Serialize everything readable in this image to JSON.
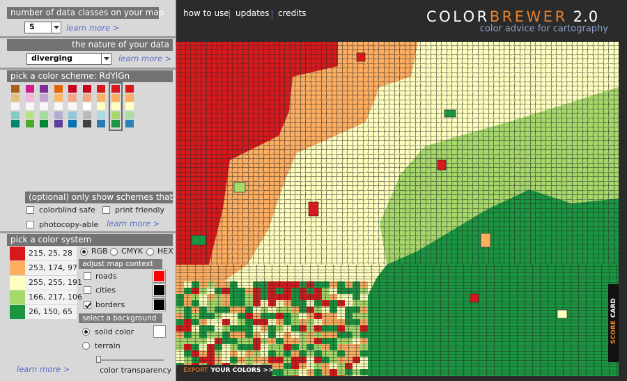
{
  "nav": {
    "links": [
      "how to use",
      "updates",
      "credits"
    ]
  },
  "header": {
    "logo_left": "COLOR",
    "logo_right": "BREWER",
    "version": "2.0",
    "tagline": "color advice for cartography"
  },
  "classes": {
    "title": "number of data classes on your map",
    "value": "5",
    "learn_more": "learn more >"
  },
  "nature": {
    "title": "the nature of your data",
    "value": "diverging",
    "learn_more": "learn more >"
  },
  "scheme": {
    "title": "pick a color scheme: RdYlGn",
    "selected": 7,
    "schemes": [
      [
        "#a6611a",
        "#dfc27d",
        "#f5f5f5",
        "#80cdc1",
        "#018571"
      ],
      [
        "#d01c8b",
        "#f1b6da",
        "#f7f7f7",
        "#b8e186",
        "#4dac26"
      ],
      [
        "#7b3294",
        "#c2a5cf",
        "#f7f7f7",
        "#a6dba0",
        "#008837"
      ],
      [
        "#e66101",
        "#fdb863",
        "#f7f7f7",
        "#b2abd2",
        "#5e3c99"
      ],
      [
        "#ca0020",
        "#f4a582",
        "#f7f7f7",
        "#92c5de",
        "#0571b0"
      ],
      [
        "#ca0020",
        "#f4a582",
        "#ffffff",
        "#bababa",
        "#404040"
      ],
      [
        "#d7191c",
        "#fdae61",
        "#ffffbf",
        "#abd9e9",
        "#2c7bb6"
      ],
      [
        "#d7191c",
        "#fdae61",
        "#ffffbf",
        "#a6d96a",
        "#1a9641"
      ],
      [
        "#d7191c",
        "#fdae61",
        "#ffffbf",
        "#abdda4",
        "#2b83ba"
      ]
    ]
  },
  "filters": {
    "title": "(optional) only show schemes that are:",
    "options": [
      {
        "label": "colorblind safe",
        "checked": false
      },
      {
        "label": "print friendly",
        "checked": false
      },
      {
        "label": "photocopy-able",
        "checked": false
      }
    ],
    "learn_more": "learn more >"
  },
  "color_system": {
    "title": "pick a color system",
    "colors": [
      {
        "label": "215, 25, 28",
        "color": "#d7191c"
      },
      {
        "label": "253, 174, 97",
        "color": "#fdae61"
      },
      {
        "label": "255, 255, 191",
        "color": "#ffffbf"
      },
      {
        "label": "166, 217, 106",
        "color": "#a6d96a"
      },
      {
        "label": "26, 150, 65",
        "color": "#1a9641"
      }
    ],
    "modes": [
      {
        "label": "RGB",
        "selected": true
      },
      {
        "label": "CMYK",
        "selected": false
      },
      {
        "label": "HEX",
        "selected": false
      }
    ],
    "learn_more": "learn more >"
  },
  "map_context": {
    "title": "adjust map context",
    "items": [
      {
        "label": "roads",
        "checked": false,
        "color": "#ff0000"
      },
      {
        "label": "cities",
        "checked": false,
        "color": "#000000"
      },
      {
        "label": "borders",
        "checked": true,
        "color": "#000000"
      }
    ]
  },
  "background": {
    "title": "select a background",
    "options": [
      {
        "label": "solid color",
        "selected": true
      },
      {
        "label": "terrain",
        "selected": false
      }
    ],
    "color": "#ffffff",
    "transparency_label": "color transparency"
  },
  "export": {
    "prefix": "EXPORT",
    "label": "YOUR COLORS >>"
  },
  "score_card": {
    "prefix": "SCORE",
    "label": "CARD"
  }
}
